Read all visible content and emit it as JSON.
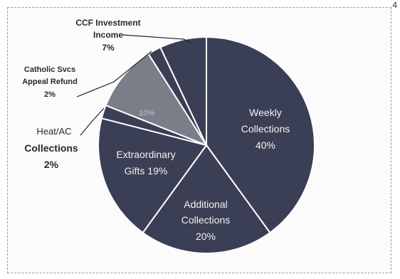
{
  "chart_data": {
    "type": "pie",
    "title": "",
    "slices": [
      {
        "label": "Weekly Collections",
        "value": 40,
        "value_label": "40%",
        "color": "#3b3f55"
      },
      {
        "label": "Additional Collections",
        "value": 20,
        "value_label": "20%",
        "color": "#3b3f55"
      },
      {
        "label": "Extraordinary Gifts",
        "value": 19,
        "value_label": "19%",
        "color": "#3b3f55"
      },
      {
        "label": "Heat/AC Collections",
        "value": 2,
        "value_label": "2%",
        "color": "#3b3f55"
      },
      {
        "label": "",
        "value": 10,
        "value_label": "10%",
        "color": "#7b7d88"
      },
      {
        "label": "Catholic Svcs Appeal Refund",
        "value": 2,
        "value_label": "2%",
        "color": "#3b3f55"
      },
      {
        "label": "CCF Investment Income",
        "value": 7,
        "value_label": "7%",
        "color": "#3b3f55"
      }
    ]
  },
  "labels": {
    "weekly_1": "Weekly",
    "weekly_2": "Collections",
    "weekly_3": "40%",
    "additional_1": "Additional",
    "additional_2": "Collections",
    "additional_3": "20%",
    "extra_1": "Extraordinary",
    "extra_2": "Gifts 19%",
    "heat_1": "Heat/AC",
    "heat_2": "Collections",
    "heat_3": "2%",
    "grey_3": "10%",
    "catholic_1": "Catholic Svcs",
    "catholic_2": "Appeal Refund",
    "catholic_3": "2%",
    "ccf_1": "CCF Investment",
    "ccf_2": "Income",
    "ccf_3": "7%"
  },
  "corner_mark": "4"
}
